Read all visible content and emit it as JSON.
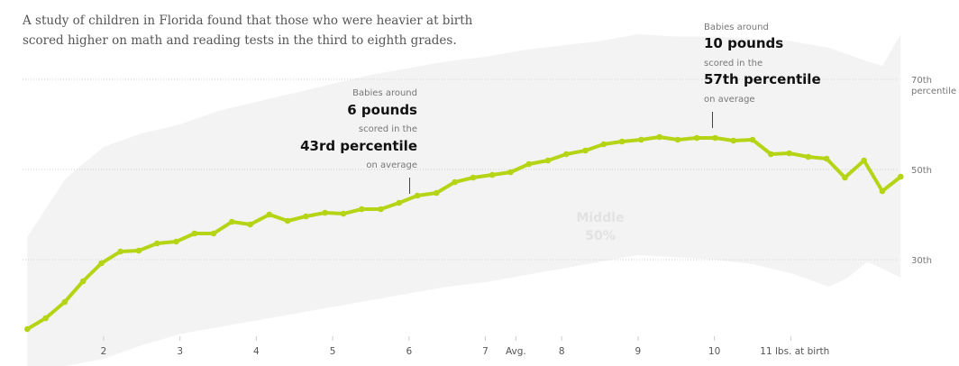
{
  "intro": "A study of children in Florida found that those who were heavier at birth scored higher on math and reading tests in the third to eighth grades.",
  "chart_data": {
    "type": "line",
    "title": "",
    "xlabel": "",
    "ylabel": "",
    "x_unit": "lbs. at birth",
    "x_ticks": [
      {
        "value": 2,
        "label": "2"
      },
      {
        "value": 3,
        "label": "3"
      },
      {
        "value": 4,
        "label": "4"
      },
      {
        "value": 5,
        "label": "5"
      },
      {
        "value": 6,
        "label": "6"
      },
      {
        "value": 7,
        "label": "7"
      },
      {
        "value": 7.4,
        "label": "Avg."
      },
      {
        "value": 8,
        "label": "8"
      },
      {
        "value": 9,
        "label": "9"
      },
      {
        "value": 10,
        "label": "10"
      },
      {
        "value": 11,
        "label": "11 lbs. at birth"
      }
    ],
    "y_ticks": [
      {
        "value": 70,
        "label": "70th",
        "sublabel": "percentile"
      },
      {
        "value": 50,
        "label": "50th"
      },
      {
        "value": 30,
        "label": "30th"
      }
    ],
    "ylim": [
      6,
      84
    ],
    "grid": true,
    "line_color": "#b5d416",
    "band_color": "#f3f3f3",
    "series": [
      {
        "x": [
          1.0,
          1.24,
          1.49,
          1.73,
          1.97,
          2.22,
          2.46,
          2.7,
          2.95,
          3.19,
          3.44,
          3.68,
          3.92,
          4.17,
          4.41,
          4.65,
          4.9,
          5.14,
          5.38,
          5.63,
          5.87,
          6.11,
          6.36,
          6.6,
          6.84,
          7.09,
          7.33,
          7.57,
          7.82,
          8.06,
          8.31,
          8.55,
          8.79,
          9.04,
          9.28,
          9.52,
          9.77,
          10.01,
          10.25,
          10.5,
          10.74,
          10.98,
          11.23,
          11.47,
          11.71,
          11.96,
          12.2,
          12.44
        ],
        "values": [
          14.6,
          17.0,
          20.6,
          25.2,
          29.2,
          31.8,
          32.0,
          33.6,
          34.0,
          35.8,
          35.8,
          38.4,
          37.8,
          40.0,
          38.6,
          39.6,
          40.4,
          40.2,
          41.2,
          41.2,
          42.6,
          44.2,
          44.8,
          47.2,
          48.2,
          48.8,
          49.4,
          51.2,
          52.0,
          53.4,
          54.2,
          55.6,
          56.2,
          56.6,
          57.2,
          56.6,
          57.0,
          57.0,
          56.4,
          56.6,
          53.4,
          53.6,
          52.8,
          52.4,
          48.2,
          52.0,
          45.2,
          48.4
        ]
      }
    ],
    "band": {
      "label_line1": "Middle",
      "label_line2": "50%",
      "x": [
        1.0,
        1.5,
        2.0,
        2.5,
        3.0,
        3.5,
        4.0,
        4.5,
        5.0,
        5.5,
        6.0,
        6.5,
        7.0,
        7.5,
        8.0,
        8.5,
        9.0,
        9.5,
        10.0,
        10.5,
        11.0,
        11.5,
        11.75,
        12.0,
        12.2,
        12.44
      ],
      "upper": [
        35,
        48,
        55,
        58,
        60,
        63,
        65,
        67,
        69,
        71,
        72.5,
        74,
        75,
        76.5,
        77.5,
        78.5,
        80,
        79.5,
        79.5,
        79,
        78.5,
        77,
        75.5,
        74,
        73,
        80
      ],
      "lower": [
        5,
        5,
        8,
        11,
        13.5,
        15,
        16.5,
        18,
        19.5,
        21,
        22.5,
        24,
        25,
        26.5,
        28,
        29.5,
        31,
        30.5,
        30,
        29,
        27,
        24,
        26,
        29.5,
        28,
        26
      ]
    },
    "annotations": [
      {
        "x": 6,
        "y": 43,
        "line1": "Babies around",
        "line2": "6 pounds",
        "line3": "scored in the",
        "line4": "43rd percentile",
        "line5": "on average"
      },
      {
        "x": 10,
        "y": 57,
        "line1": "Babies around",
        "line2": "10 pounds",
        "line3": "scored in the",
        "line4": "57th percentile",
        "line5": "on average"
      }
    ]
  }
}
